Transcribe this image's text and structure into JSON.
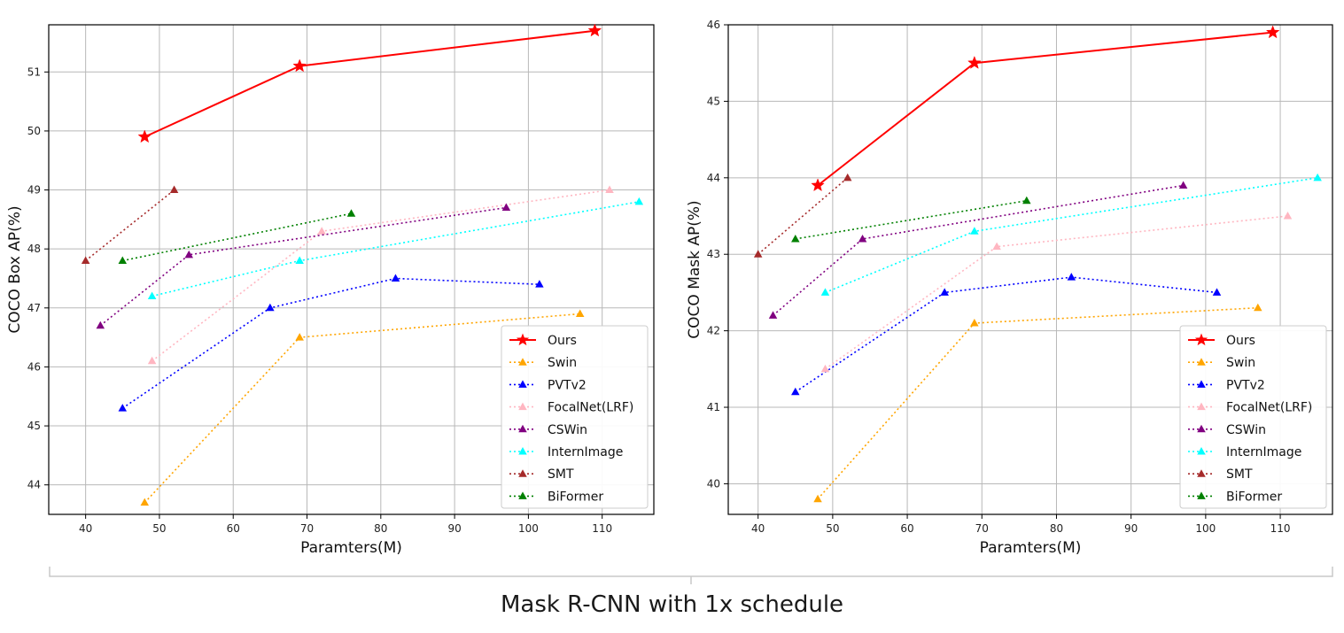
{
  "caption": "Mask R-CNN with 1x schedule",
  "chart_data": [
    {
      "type": "line",
      "xlabel": "Paramters(M)",
      "ylabel": "COCO Box AP(%)",
      "xlim": [
        35,
        117
      ],
      "ylim": [
        43.5,
        51.8
      ],
      "xticks": [
        40,
        50,
        60,
        70,
        80,
        90,
        100,
        110
      ],
      "yticks": [
        44,
        45,
        46,
        47,
        48,
        49,
        50,
        51
      ],
      "grid": true,
      "legend": "lower-right",
      "series": [
        {
          "name": "Ours",
          "color": "#ff0000",
          "marker": "star",
          "style": "solid",
          "x": [
            48,
            69,
            109
          ],
          "y": [
            49.9,
            51.1,
            51.7
          ]
        },
        {
          "name": "Swin",
          "color": "#ffa500",
          "marker": "triangle",
          "style": "dotted",
          "x": [
            48,
            69,
            107
          ],
          "y": [
            43.7,
            46.5,
            46.9
          ]
        },
        {
          "name": "PVTv2",
          "color": "#0000ff",
          "marker": "triangle",
          "style": "dotted",
          "x": [
            45,
            65,
            82,
            101.5
          ],
          "y": [
            45.3,
            47.0,
            47.5,
            47.4
          ]
        },
        {
          "name": "FocalNet(LRF)",
          "color": "#ffb6c1",
          "marker": "triangle",
          "style": "dotted",
          "x": [
            49,
            72,
            111
          ],
          "y": [
            46.1,
            48.3,
            49.0
          ]
        },
        {
          "name": "CSWin",
          "color": "#800080",
          "marker": "triangle",
          "style": "dotted",
          "x": [
            42,
            54,
            97
          ],
          "y": [
            46.7,
            47.9,
            48.7
          ]
        },
        {
          "name": "InternImage",
          "color": "#00ffff",
          "marker": "triangle",
          "style": "dotted",
          "x": [
            49,
            69,
            115
          ],
          "y": [
            47.2,
            47.8,
            48.8
          ]
        },
        {
          "name": "SMT",
          "color": "#a52a2a",
          "marker": "triangle",
          "style": "dotted",
          "x": [
            40,
            52
          ],
          "y": [
            47.8,
            49.0
          ]
        },
        {
          "name": "BiFormer",
          "color": "#008000",
          "marker": "triangle",
          "style": "dotted",
          "x": [
            45,
            76
          ],
          "y": [
            47.8,
            48.6
          ]
        }
      ]
    },
    {
      "type": "line",
      "xlabel": "Paramters(M)",
      "ylabel": "COCO Mask AP(%)",
      "xlim": [
        36,
        117
      ],
      "ylim": [
        39.6,
        46.0
      ],
      "xticks": [
        40,
        50,
        60,
        70,
        80,
        90,
        100,
        110
      ],
      "yticks": [
        40,
        41,
        42,
        43,
        44,
        45,
        46
      ],
      "grid": true,
      "legend": "lower-right",
      "series": [
        {
          "name": "Ours",
          "color": "#ff0000",
          "marker": "star",
          "style": "solid",
          "x": [
            48,
            69,
            109
          ],
          "y": [
            43.9,
            45.5,
            45.9
          ]
        },
        {
          "name": "Swin",
          "color": "#ffa500",
          "marker": "triangle",
          "style": "dotted",
          "x": [
            48,
            69,
            107
          ],
          "y": [
            39.8,
            42.1,
            42.3
          ]
        },
        {
          "name": "PVTv2",
          "color": "#0000ff",
          "marker": "triangle",
          "style": "dotted",
          "x": [
            45,
            65,
            82,
            101.5
          ],
          "y": [
            41.2,
            42.5,
            42.7,
            42.5
          ]
        },
        {
          "name": "FocalNet(LRF)",
          "color": "#ffb6c1",
          "marker": "triangle",
          "style": "dotted",
          "x": [
            49,
            72,
            111
          ],
          "y": [
            41.5,
            43.1,
            43.5
          ]
        },
        {
          "name": "CSWin",
          "color": "#800080",
          "marker": "triangle",
          "style": "dotted",
          "x": [
            42,
            54,
            97
          ],
          "y": [
            42.2,
            43.2,
            43.9
          ]
        },
        {
          "name": "InternImage",
          "color": "#00ffff",
          "marker": "triangle",
          "style": "dotted",
          "x": [
            49,
            69,
            115
          ],
          "y": [
            42.5,
            43.3,
            44.0
          ]
        },
        {
          "name": "SMT",
          "color": "#a52a2a",
          "marker": "triangle",
          "style": "dotted",
          "x": [
            40,
            52
          ],
          "y": [
            43.0,
            44.0
          ]
        },
        {
          "name": "BiFormer",
          "color": "#008000",
          "marker": "triangle",
          "style": "dotted",
          "x": [
            45,
            76
          ],
          "y": [
            43.2,
            43.7
          ]
        }
      ]
    }
  ]
}
